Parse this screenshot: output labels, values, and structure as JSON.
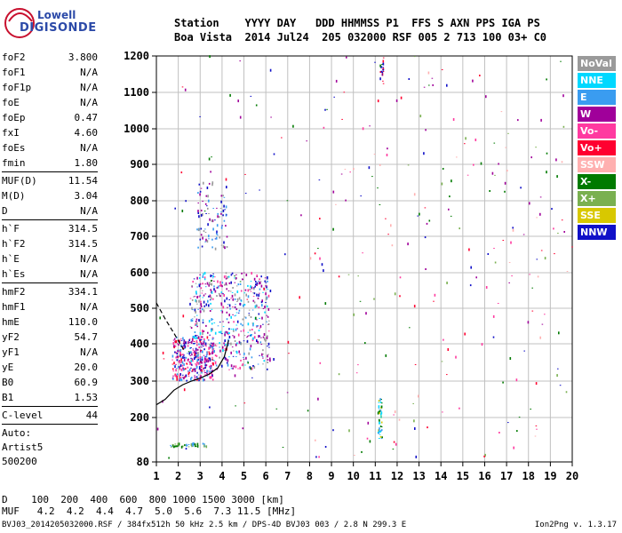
{
  "logo": {
    "line1": "Lowell",
    "line2": "DIGISONDE"
  },
  "header": {
    "row1": "Station    YYYY DAY   DDD HHMMSS P1  FFS S AXN PPS IGA PS",
    "row2": "Boa Vista  2014 Jul24  205 032000 RSF 005 2 713 100 03+ C0"
  },
  "params": [
    {
      "name": "foF2",
      "value": "3.800"
    },
    {
      "name": "foF1",
      "value": "N/A"
    },
    {
      "name": "foF1p",
      "value": "N/A"
    },
    {
      "name": "foE",
      "value": "N/A"
    },
    {
      "name": "foEp",
      "value": "0.47"
    },
    {
      "name": "fxI",
      "value": "4.60"
    },
    {
      "name": "foEs",
      "value": "N/A"
    },
    {
      "name": "fmin",
      "value": "1.80"
    },
    {
      "sep": true
    },
    {
      "name": "MUF(D)",
      "value": "11.54"
    },
    {
      "name": "M(D)",
      "value": "3.04"
    },
    {
      "name": "D",
      "value": "N/A"
    },
    {
      "sep": true
    },
    {
      "name": "h`F",
      "value": "314.5"
    },
    {
      "name": "h`F2",
      "value": "314.5"
    },
    {
      "name": "h`E",
      "value": "N/A"
    },
    {
      "name": "h`Es",
      "value": "N/A"
    },
    {
      "sep": true
    },
    {
      "name": "hmF2",
      "value": "334.1"
    },
    {
      "name": "hmF1",
      "value": "N/A"
    },
    {
      "name": "hmE",
      "value": "110.0"
    },
    {
      "name": "yF2",
      "value": "54.7"
    },
    {
      "name": "yF1",
      "value": "N/A"
    },
    {
      "name": "yE",
      "value": "20.0"
    },
    {
      "name": "B0",
      "value": "60.9"
    },
    {
      "name": "B1",
      "value": "1.53"
    },
    {
      "sep": true
    },
    {
      "name": "C-level",
      "value": "44"
    },
    {
      "sep": true
    }
  ],
  "auto": {
    "line1": "Auto:",
    "line2": "Artist5",
    "line3": "500200"
  },
  "legend": [
    {
      "label": "NoVal",
      "color": "#9a9a9a"
    },
    {
      "label": "NNE",
      "color": "#00d8ff"
    },
    {
      "label": "E",
      "color": "#3a9cf0"
    },
    {
      "label": "W",
      "color": "#a0009a"
    },
    {
      "label": "Vo-",
      "color": "#ff3aa0"
    },
    {
      "label": "Vo+",
      "color": "#ff0030"
    },
    {
      "label": "SSW",
      "color": "#ffb0b0"
    },
    {
      "label": "X-",
      "color": "#007a00"
    },
    {
      "label": "X+",
      "color": "#7ab050"
    },
    {
      "label": "SSE",
      "color": "#d8c800"
    },
    {
      "label": "NNW",
      "color": "#1010c8"
    }
  ],
  "footer": {
    "dline": "D    100  200  400  600  800 1000 1500 3000 [km]",
    "mufline": "MUF   4.2  4.2  4.4  4.7  5.0  5.6  7.3 11.5 [MHz]",
    "info": "BVJ03_2014205032000.RSF / 384fx512h 50 kHz 2.5 km / DPS-4D BVJ03 003 / 2.8 N 299.3 E",
    "version": "Ion2Png v. 1.3.17"
  },
  "chart_data": {
    "type": "scatter",
    "xlim": [
      1,
      20
    ],
    "ylim": [
      80,
      1200
    ],
    "xticks": [
      1,
      2,
      3,
      4,
      5,
      6,
      7,
      8,
      9,
      10,
      11,
      12,
      13,
      14,
      15,
      16,
      17,
      18,
      19,
      20
    ],
    "yticks": [
      80,
      200,
      300,
      400,
      500,
      600,
      700,
      800,
      900,
      1000,
      1100,
      1200
    ],
    "grid": true,
    "legend_placement": "right",
    "traces": [
      {
        "name": "profile",
        "style": "solid",
        "points": [
          [
            1,
            235
          ],
          [
            1.4,
            250
          ],
          [
            1.8,
            275
          ],
          [
            2.2,
            290
          ],
          [
            2.6,
            300
          ],
          [
            3,
            308
          ],
          [
            3.4,
            318
          ],
          [
            3.8,
            335
          ],
          [
            4.1,
            365
          ],
          [
            4.3,
            410
          ]
        ]
      },
      {
        "name": "ionogram-fit",
        "style": "dashed",
        "points": [
          [
            1,
            515
          ],
          [
            1.4,
            470
          ],
          [
            1.8,
            430
          ],
          [
            2.1,
            398
          ],
          [
            2.3,
            380
          ]
        ]
      }
    ],
    "clusters": [
      {
        "fmin": 1.7,
        "fmax": 3.6,
        "hmin": 300,
        "hmax": 420,
        "n": 340,
        "colors": [
          "#a0009a",
          "#ff0030",
          "#ff3aa0",
          "#1010c8",
          "#3a9cf0"
        ]
      },
      {
        "fmin": 2.5,
        "fmax": 6.2,
        "hmin": 330,
        "hmax": 600,
        "n": 520,
        "colors": [
          "#a0009a",
          "#a0009a",
          "#3a9cf0",
          "#00d8ff",
          "#1010c8",
          "#ff3aa0",
          "#9a9a9a"
        ]
      },
      {
        "fmin": 2.8,
        "fmax": 4.2,
        "hmin": 660,
        "hmax": 850,
        "n": 90,
        "colors": [
          "#a0009a",
          "#1010c8",
          "#3a9cf0",
          "#9a9a9a"
        ]
      },
      {
        "fmin": 1.6,
        "fmax": 3.3,
        "hmin": 120,
        "hmax": 130,
        "n": 40,
        "colors": [
          "#007a00",
          "#7ab050",
          "#3a9cf0"
        ]
      },
      {
        "fmin": 11.1,
        "fmax": 11.3,
        "hmin": 140,
        "hmax": 250,
        "n": 45,
        "colors": [
          "#007a00",
          "#3a9cf0",
          "#d8c800",
          "#00d8ff"
        ]
      },
      {
        "fmin": 11.2,
        "fmax": 11.35,
        "hmin": 1120,
        "hmax": 1200,
        "n": 20,
        "colors": [
          "#1010c8",
          "#007a00",
          "#ff0030"
        ]
      },
      {
        "fmin": 8,
        "fmax": 20,
        "hmin": 90,
        "hmax": 1200,
        "n": 230,
        "colors": [
          "#a0009a",
          "#ff0030",
          "#007a00",
          "#ff3aa0",
          "#7ab050",
          "#ffb0b0",
          "#1010c8"
        ]
      },
      {
        "fmin": 1,
        "fmax": 8,
        "hmin": 90,
        "hmax": 1200,
        "n": 70,
        "colors": [
          "#a0009a",
          "#1010c8",
          "#ff0030",
          "#007a00"
        ]
      }
    ]
  }
}
